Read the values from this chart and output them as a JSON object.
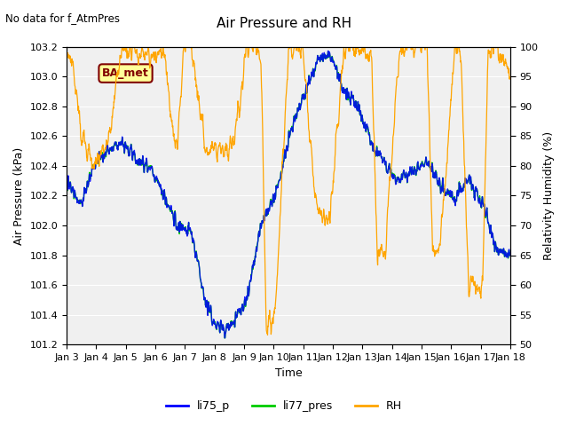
{
  "title": "Air Pressure and RH",
  "subtitle": "No data for f_AtmPres",
  "xlabel": "Time",
  "ylabel_left": "Air Pressure (kPa)",
  "ylabel_right": "Relativity Humidity (%)",
  "ylim_left": [
    101.2,
    103.2
  ],
  "ylim_right": [
    50,
    100
  ],
  "yticks_left": [
    101.2,
    101.4,
    101.6,
    101.8,
    102.0,
    102.2,
    102.4,
    102.6,
    102.8,
    103.0,
    103.2
  ],
  "yticks_right": [
    50,
    55,
    60,
    65,
    70,
    75,
    80,
    85,
    90,
    95,
    100
  ],
  "xtick_labels": [
    "Jan 3",
    "Jan 4",
    "Jan 5",
    "Jan 6",
    "Jan 7",
    "Jan 8",
    "Jan 9",
    "Jan 10",
    "Jan 11",
    "Jan 12",
    "Jan 13",
    "Jan 14",
    "Jan 15",
    "Jan 16",
    "Jan 17",
    "Jan 18"
  ],
  "box_label": "BA_met",
  "box_facecolor": "#FFFF99",
  "box_edgecolor": "#800000",
  "line_li75_color": "#0000FF",
  "line_li77_color": "#00CC00",
  "line_rh_color": "#FFA500",
  "bg_color": "#E8E8E8",
  "plot_bg_color": "#F0F0F0",
  "legend_entries": [
    "li75_p",
    "li77_pres",
    "RH"
  ]
}
